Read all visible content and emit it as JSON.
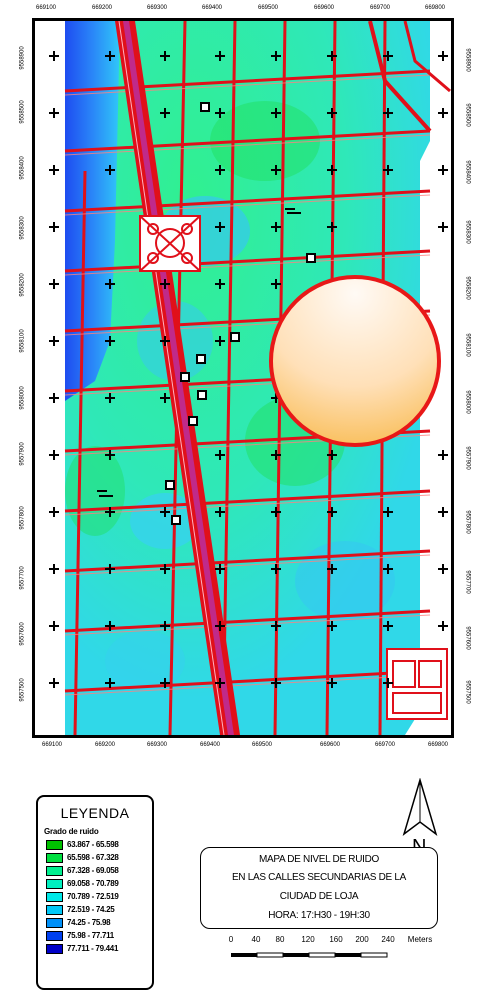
{
  "map": {
    "x_ticks": [
      "669100",
      "669200",
      "669300",
      "669400",
      "669500",
      "669600",
      "669700",
      "669800"
    ],
    "y_ticks_left": [
      "9558900",
      "9558500",
      "9558400",
      "9558300",
      "9558200",
      "9558100",
      "9558000",
      "9557900",
      "9557800",
      "9557700",
      "9557600",
      "9557500"
    ],
    "y_ticks_right": [
      "9558900",
      "9558500",
      "9558400",
      "9558300",
      "9558200",
      "9558100",
      "9558000",
      "9557900",
      "9557800",
      "9557700",
      "9557600",
      "9557500"
    ],
    "colors": {
      "street": "#e0101a",
      "river_road": "#c02a8a",
      "block_outline": "#000000",
      "zone_low": "#20e070",
      "zone_mid": "#30e8c8",
      "zone_high": "#28c8ff",
      "zone_max": "#2060ff"
    }
  },
  "legend": {
    "title": "LEYENDA",
    "subtitle": "Grado de ruido",
    "items": [
      {
        "label": "63.867 - 65.598",
        "color": "#00c000"
      },
      {
        "label": "65.598 - 67.328",
        "color": "#00e040"
      },
      {
        "label": "67.328 - 69.058",
        "color": "#00f090"
      },
      {
        "label": "69.058 - 70.789",
        "color": "#00f0c0"
      },
      {
        "label": "70.789 - 72.519",
        "color": "#00e8e8"
      },
      {
        "label": "72.519 - 74.25",
        "color": "#00c8f8"
      },
      {
        "label": "74.25 - 75.98",
        "color": "#0090f8"
      },
      {
        "label": "75.98 - 77.711",
        "color": "#0040f0"
      },
      {
        "label": "77.711 - 79.441",
        "color": "#0000c8"
      }
    ]
  },
  "north": {
    "label": "N"
  },
  "title_box": {
    "line1": "MAPA DE NIVEL DE RUIDO",
    "line2": "EN LAS CALLES SECUNDARIAS DE LA",
    "line3": "CIUDAD DE LOJA",
    "line4": "HORA: 17:H30 - 19H:30"
  },
  "scale": {
    "labels": [
      "0",
      "40",
      "80",
      "120",
      "160",
      "200",
      "240"
    ],
    "unit": "Meters"
  }
}
